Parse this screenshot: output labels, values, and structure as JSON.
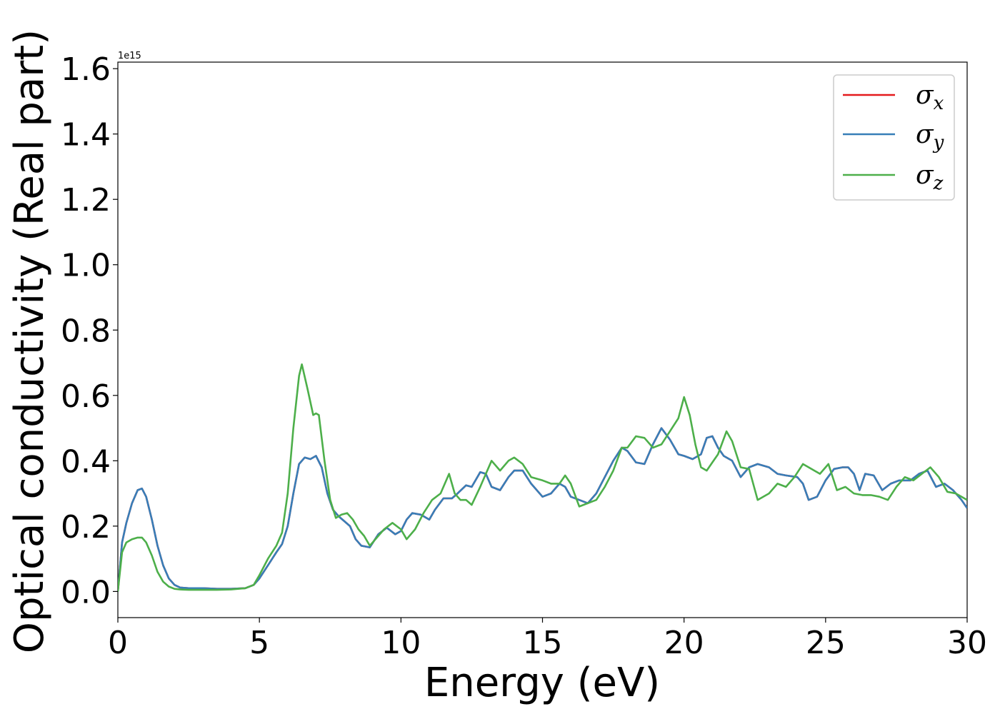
{
  "chart_data": {
    "type": "line",
    "xlabel": "Energy (eV)",
    "ylabel": "Optical conductivity (Real part)",
    "offset_text": "1e15",
    "xlim": [
      0,
      30
    ],
    "ylim": [
      -0.08,
      1.62
    ],
    "xticks": [
      0,
      5,
      10,
      15,
      20,
      25,
      30
    ],
    "xtick_labels": [
      "0",
      "5",
      "10",
      "15",
      "20",
      "25",
      "30"
    ],
    "yticks": [
      0.0,
      0.2,
      0.4,
      0.6,
      0.8,
      1.0,
      1.2,
      1.4,
      1.6
    ],
    "ytick_labels": [
      "0.0",
      "0.2",
      "0.4",
      "0.6",
      "0.8",
      "1.0",
      "1.2",
      "1.4",
      "1.6"
    ],
    "grid": false,
    "legend_position": "top-right",
    "series": [
      {
        "name": "σx",
        "symbol": "σ",
        "subscript": "x",
        "color": "#e41a1c",
        "x": [
          0,
          0.15,
          0.3,
          0.5,
          0.7,
          0.85,
          1.0,
          1.2,
          1.4,
          1.6,
          1.8,
          2.0,
          2.2,
          2.5,
          3.0,
          3.5,
          4.0,
          4.5,
          4.8,
          5.0,
          5.3,
          5.6,
          5.8,
          6.0,
          6.2,
          6.4,
          6.6,
          6.8,
          7.0,
          7.2,
          7.4,
          7.6,
          7.8,
          8.0,
          8.2,
          8.4,
          8.6,
          8.9,
          9.2,
          9.5,
          9.8,
          10.0,
          10.2,
          10.4,
          10.7,
          11.0,
          11.2,
          11.5,
          11.8,
          12.0,
          12.3,
          12.5,
          12.8,
          13.0,
          13.2,
          13.5,
          13.8,
          14.0,
          14.3,
          14.6,
          15.0,
          15.3,
          15.6,
          15.8,
          16.0,
          16.3,
          16.6,
          16.9,
          17.2,
          17.5,
          17.8,
          18.0,
          18.3,
          18.6,
          18.9,
          19.2,
          19.5,
          19.8,
          20.0,
          20.3,
          20.6,
          20.8,
          21.0,
          21.2,
          21.4,
          21.7,
          22.0,
          22.3,
          22.6,
          23.0,
          23.3,
          23.6,
          24.0,
          24.2,
          24.4,
          24.7,
          25.0,
          25.3,
          25.6,
          25.8,
          26.0,
          26.2,
          26.4,
          26.7,
          27.0,
          27.3,
          27.6,
          28.0,
          28.3,
          28.6,
          28.9,
          29.2,
          29.5,
          29.8,
          30.0
        ],
        "values": [
          0.0,
          0.15,
          0.21,
          0.27,
          0.31,
          0.315,
          0.29,
          0.22,
          0.14,
          0.08,
          0.04,
          0.02,
          0.012,
          0.01,
          0.01,
          0.008,
          0.008,
          0.01,
          0.02,
          0.04,
          0.08,
          0.12,
          0.145,
          0.2,
          0.3,
          0.39,
          0.41,
          0.405,
          0.415,
          0.38,
          0.3,
          0.25,
          0.23,
          0.215,
          0.2,
          0.16,
          0.14,
          0.135,
          0.175,
          0.195,
          0.175,
          0.185,
          0.22,
          0.24,
          0.235,
          0.22,
          0.25,
          0.285,
          0.285,
          0.3,
          0.325,
          0.32,
          0.365,
          0.36,
          0.32,
          0.31,
          0.35,
          0.37,
          0.37,
          0.33,
          0.29,
          0.3,
          0.33,
          0.32,
          0.29,
          0.28,
          0.27,
          0.3,
          0.35,
          0.4,
          0.44,
          0.43,
          0.395,
          0.39,
          0.45,
          0.5,
          0.465,
          0.42,
          0.415,
          0.405,
          0.42,
          0.47,
          0.475,
          0.44,
          0.415,
          0.4,
          0.35,
          0.38,
          0.39,
          0.38,
          0.36,
          0.355,
          0.35,
          0.33,
          0.28,
          0.29,
          0.34,
          0.375,
          0.38,
          0.38,
          0.36,
          0.31,
          0.36,
          0.355,
          0.31,
          0.33,
          0.34,
          0.34,
          0.36,
          0.37,
          0.32,
          0.33,
          0.31,
          0.28,
          0.255
        ]
      },
      {
        "name": "σy",
        "symbol": "σ",
        "subscript": "y",
        "color": "#377eb8",
        "x": [
          0,
          0.15,
          0.3,
          0.5,
          0.7,
          0.85,
          1.0,
          1.2,
          1.4,
          1.6,
          1.8,
          2.0,
          2.2,
          2.5,
          3.0,
          3.5,
          4.0,
          4.5,
          4.8,
          5.0,
          5.3,
          5.6,
          5.8,
          6.0,
          6.2,
          6.4,
          6.6,
          6.8,
          7.0,
          7.2,
          7.4,
          7.6,
          7.8,
          8.0,
          8.2,
          8.4,
          8.6,
          8.9,
          9.2,
          9.5,
          9.8,
          10.0,
          10.2,
          10.4,
          10.7,
          11.0,
          11.2,
          11.5,
          11.8,
          12.0,
          12.3,
          12.5,
          12.8,
          13.0,
          13.2,
          13.5,
          13.8,
          14.0,
          14.3,
          14.6,
          15.0,
          15.3,
          15.6,
          15.8,
          16.0,
          16.3,
          16.6,
          16.9,
          17.2,
          17.5,
          17.8,
          18.0,
          18.3,
          18.6,
          18.9,
          19.2,
          19.5,
          19.8,
          20.0,
          20.3,
          20.6,
          20.8,
          21.0,
          21.2,
          21.4,
          21.7,
          22.0,
          22.3,
          22.6,
          23.0,
          23.3,
          23.6,
          24.0,
          24.2,
          24.4,
          24.7,
          25.0,
          25.3,
          25.6,
          25.8,
          26.0,
          26.2,
          26.4,
          26.7,
          27.0,
          27.3,
          27.6,
          28.0,
          28.3,
          28.6,
          28.9,
          29.2,
          29.5,
          29.8,
          30.0
        ],
        "values": [
          0.0,
          0.15,
          0.21,
          0.27,
          0.31,
          0.315,
          0.29,
          0.22,
          0.14,
          0.08,
          0.04,
          0.02,
          0.012,
          0.01,
          0.01,
          0.008,
          0.008,
          0.01,
          0.02,
          0.04,
          0.08,
          0.12,
          0.145,
          0.2,
          0.3,
          0.39,
          0.41,
          0.405,
          0.415,
          0.38,
          0.3,
          0.25,
          0.23,
          0.215,
          0.2,
          0.16,
          0.14,
          0.135,
          0.175,
          0.195,
          0.175,
          0.185,
          0.22,
          0.24,
          0.235,
          0.22,
          0.25,
          0.285,
          0.285,
          0.3,
          0.325,
          0.32,
          0.365,
          0.36,
          0.32,
          0.31,
          0.35,
          0.37,
          0.37,
          0.33,
          0.29,
          0.3,
          0.33,
          0.32,
          0.29,
          0.28,
          0.27,
          0.3,
          0.35,
          0.4,
          0.44,
          0.43,
          0.395,
          0.39,
          0.45,
          0.5,
          0.465,
          0.42,
          0.415,
          0.405,
          0.42,
          0.47,
          0.475,
          0.44,
          0.415,
          0.4,
          0.35,
          0.38,
          0.39,
          0.38,
          0.36,
          0.355,
          0.35,
          0.33,
          0.28,
          0.29,
          0.34,
          0.375,
          0.38,
          0.38,
          0.36,
          0.31,
          0.36,
          0.355,
          0.31,
          0.33,
          0.34,
          0.34,
          0.36,
          0.37,
          0.32,
          0.33,
          0.31,
          0.28,
          0.255
        ]
      },
      {
        "name": "σz",
        "symbol": "σ",
        "subscript": "z",
        "color": "#4daf4a",
        "x": [
          0,
          0.15,
          0.3,
          0.5,
          0.7,
          0.85,
          1.0,
          1.2,
          1.4,
          1.6,
          1.8,
          2.0,
          2.2,
          2.5,
          3.0,
          3.5,
          4.0,
          4.5,
          4.8,
          5.0,
          5.3,
          5.6,
          5.8,
          6.0,
          6.2,
          6.4,
          6.5,
          6.7,
          6.9,
          7.0,
          7.1,
          7.3,
          7.5,
          7.7,
          7.9,
          8.1,
          8.3,
          8.5,
          8.7,
          8.9,
          9.1,
          9.4,
          9.7,
          10.0,
          10.2,
          10.5,
          10.8,
          11.1,
          11.4,
          11.7,
          11.9,
          12.1,
          12.3,
          12.5,
          12.8,
          13.0,
          13.2,
          13.5,
          13.8,
          14.0,
          14.3,
          14.6,
          15.0,
          15.3,
          15.6,
          15.8,
          16.0,
          16.3,
          16.6,
          16.9,
          17.2,
          17.5,
          17.8,
          18.0,
          18.3,
          18.6,
          18.9,
          19.2,
          19.5,
          19.8,
          20.0,
          20.2,
          20.4,
          20.6,
          20.8,
          21.0,
          21.2,
          21.5,
          21.7,
          22.0,
          22.3,
          22.6,
          23.0,
          23.3,
          23.6,
          23.9,
          24.2,
          24.5,
          24.8,
          25.1,
          25.4,
          25.7,
          26.0,
          26.3,
          26.6,
          26.9,
          27.2,
          27.5,
          27.8,
          28.1,
          28.4,
          28.7,
          29.0,
          29.3,
          29.6,
          30.0
        ],
        "values": [
          0.0,
          0.12,
          0.15,
          0.16,
          0.165,
          0.165,
          0.15,
          0.11,
          0.06,
          0.03,
          0.015,
          0.008,
          0.006,
          0.005,
          0.005,
          0.005,
          0.006,
          0.01,
          0.02,
          0.05,
          0.1,
          0.14,
          0.18,
          0.3,
          0.5,
          0.66,
          0.695,
          0.62,
          0.54,
          0.545,
          0.54,
          0.4,
          0.28,
          0.225,
          0.235,
          0.24,
          0.22,
          0.19,
          0.17,
          0.14,
          0.16,
          0.19,
          0.21,
          0.19,
          0.16,
          0.19,
          0.24,
          0.28,
          0.3,
          0.36,
          0.3,
          0.28,
          0.28,
          0.265,
          0.32,
          0.36,
          0.4,
          0.37,
          0.4,
          0.41,
          0.39,
          0.35,
          0.34,
          0.33,
          0.33,
          0.355,
          0.33,
          0.26,
          0.27,
          0.28,
          0.32,
          0.37,
          0.44,
          0.44,
          0.475,
          0.47,
          0.44,
          0.45,
          0.49,
          0.53,
          0.595,
          0.54,
          0.45,
          0.38,
          0.37,
          0.395,
          0.42,
          0.49,
          0.46,
          0.38,
          0.375,
          0.28,
          0.3,
          0.33,
          0.32,
          0.35,
          0.39,
          0.375,
          0.36,
          0.39,
          0.31,
          0.32,
          0.3,
          0.295,
          0.295,
          0.29,
          0.28,
          0.32,
          0.35,
          0.34,
          0.36,
          0.38,
          0.35,
          0.305,
          0.3,
          0.28
        ]
      }
    ]
  }
}
